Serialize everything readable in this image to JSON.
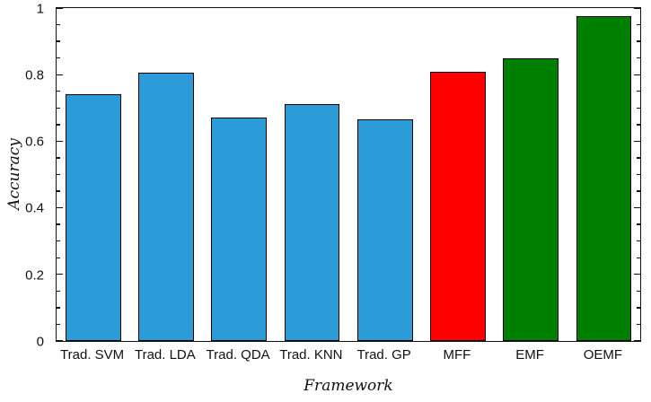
{
  "chart_data": {
    "type": "bar",
    "title": "",
    "xlabel": "Framework",
    "ylabel": "Accuracy",
    "categories": [
      "Trad. SVM",
      "Trad. LDA",
      "Trad. QDA",
      "Trad. KNN",
      "Trad. GP",
      "MFF",
      "EMF",
      "OEMF"
    ],
    "values": [
      0.74,
      0.805,
      0.67,
      0.712,
      0.665,
      0.81,
      0.85,
      0.975
    ],
    "bar_colors": [
      "#2B9CD8",
      "#2B9CD8",
      "#2B9CD8",
      "#2B9CD8",
      "#2B9CD8",
      "#FF0000",
      "#008000",
      "#008000"
    ],
    "edge_color": "#000000",
    "ylim": [
      0,
      1
    ],
    "yticks": [
      0,
      0.2,
      0.4,
      0.6,
      0.8,
      1
    ],
    "ytick_labels": [
      "0",
      "0.2",
      "0.4",
      "0.6",
      "0.8",
      "1"
    ],
    "minor_tick_step": 0.05,
    "grid": false,
    "legend": null,
    "background": "#ffffff"
  }
}
